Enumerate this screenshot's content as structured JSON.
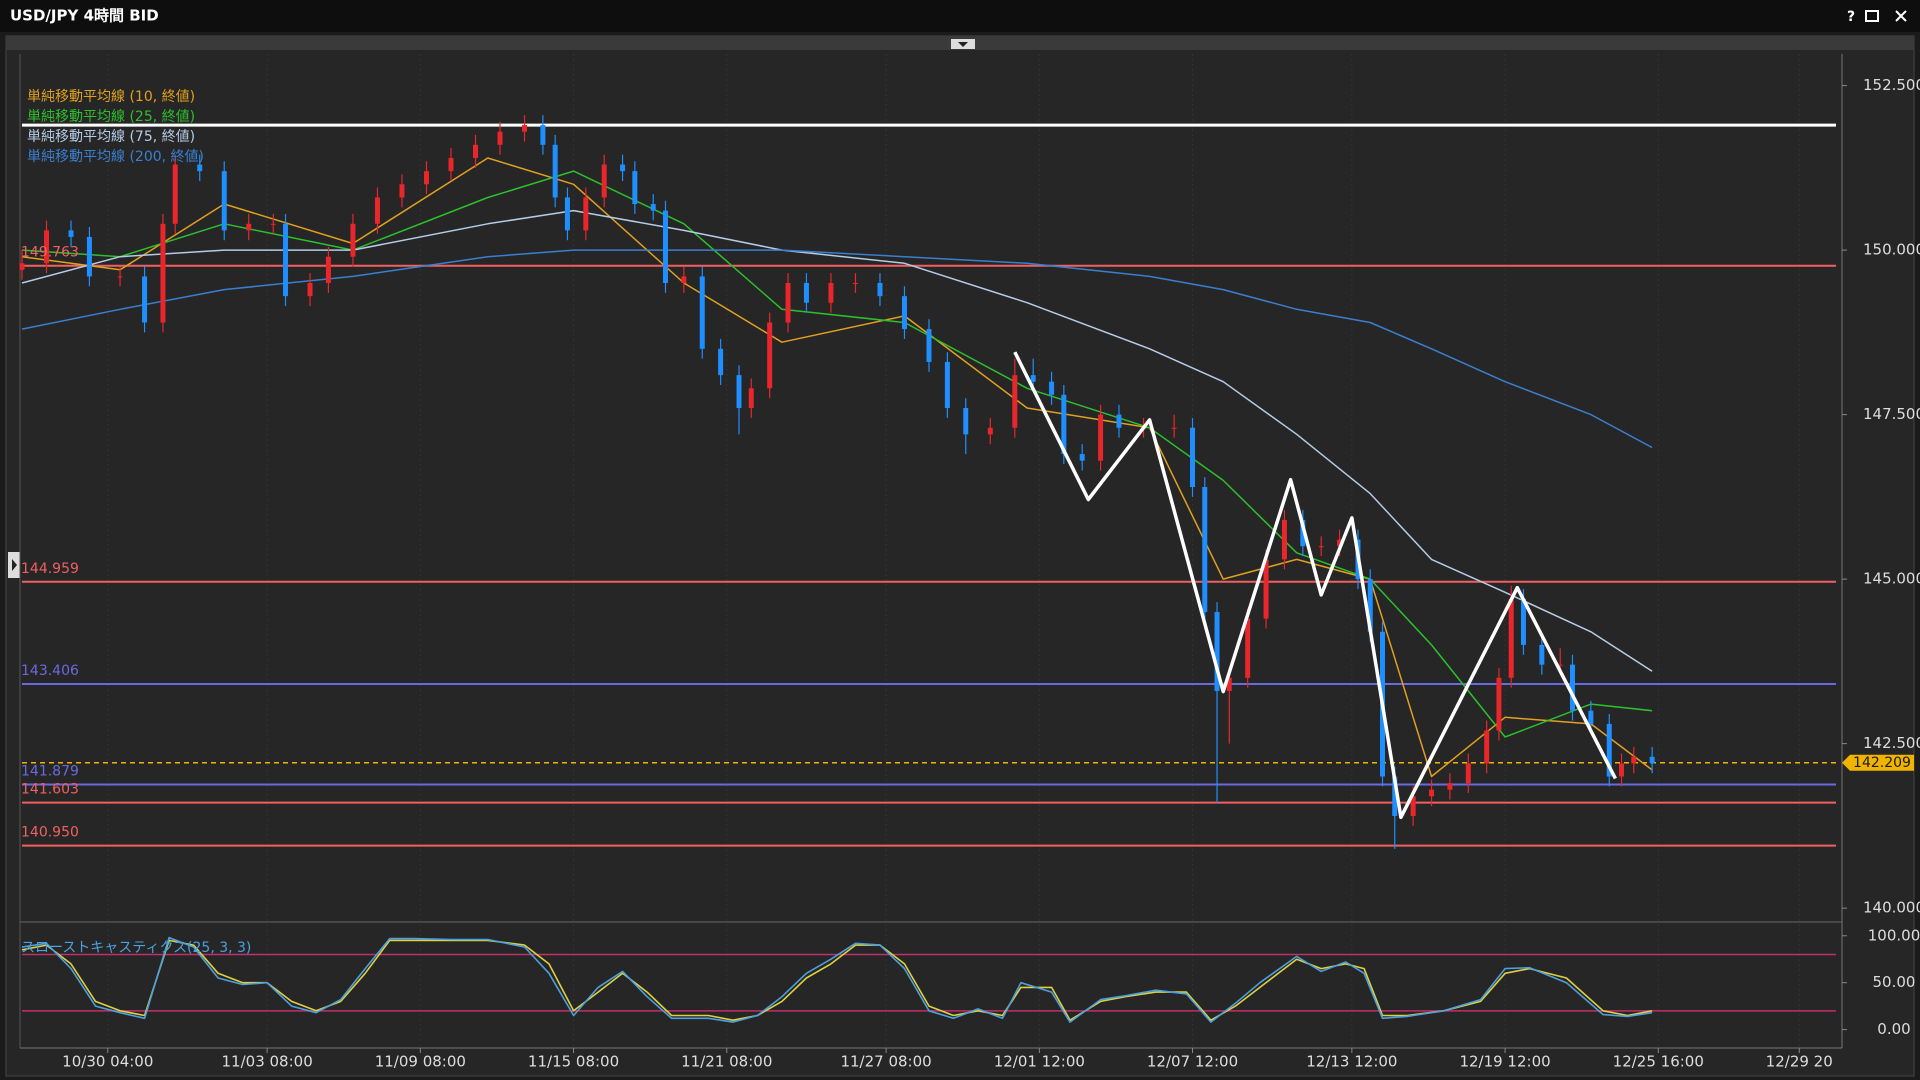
{
  "chart_data": {
    "type": "candlestick",
    "title": "USD/JPY 4時間 BID",
    "xlim": [
      0,
      296
    ],
    "xticks": [
      {
        "value": 14,
        "label": "10/30 04:00"
      },
      {
        "value": 40,
        "label": "11/03 08:00"
      },
      {
        "value": 65,
        "label": "11/09 08:00"
      },
      {
        "value": 90,
        "label": "11/15 08:00"
      },
      {
        "value": 115,
        "label": "11/21 08:00"
      },
      {
        "value": 141,
        "label": "11/27 08:00"
      },
      {
        "value": 166,
        "label": "12/01 12:00"
      },
      {
        "value": 191,
        "label": "12/07 12:00"
      },
      {
        "value": 217,
        "label": "12/13 12:00"
      },
      {
        "value": 242,
        "label": "12/19 12:00"
      },
      {
        "value": 267,
        "label": "12/25 16:00"
      },
      {
        "value": 290,
        "label": "12/29 20"
      }
    ],
    "grid": true,
    "ylim": [
      139.85,
      152.98
    ],
    "yticks": [
      {
        "value": 140,
        "label": "140.000"
      },
      {
        "value": 142.5,
        "label": "142.500"
      },
      {
        "value": 145,
        "label": "145.000"
      },
      {
        "value": 147.5,
        "label": "147.500"
      },
      {
        "value": 150,
        "label": "150.000"
      },
      {
        "value": 152.5,
        "label": "152.500"
      }
    ],
    "candles": {
      "up_color": "#e8262b",
      "down_color": "#1f8fff",
      "x": [
        0,
        4,
        8,
        11,
        16,
        20,
        23,
        25,
        29,
        33,
        37,
        41,
        43,
        47,
        50,
        54,
        58,
        62,
        66,
        70,
        74,
        78,
        82,
        85,
        87,
        89,
        92,
        95,
        98,
        100,
        103,
        105,
        108,
        111,
        114,
        117,
        119,
        122,
        125,
        128,
        132,
        136,
        140,
        144,
        148,
        151,
        154,
        158,
        162,
        165,
        168,
        170,
        173,
        176,
        179,
        183,
        188,
        191,
        193,
        195,
        197,
        200,
        203,
        206,
        209,
        212,
        215,
        218,
        220,
        222,
        224,
        227,
        230,
        233,
        236,
        239,
        241,
        243,
        245,
        248,
        251,
        253,
        256,
        259,
        261,
        263,
        266
      ],
      "ohlc": [
        [
          149.7,
          150.0,
          149.55,
          149.8
        ],
        [
          149.8,
          150.45,
          149.65,
          150.3
        ],
        [
          150.3,
          150.45,
          150.05,
          150.2
        ],
        [
          150.2,
          150.35,
          149.45,
          149.6
        ],
        [
          149.6,
          149.75,
          149.45,
          149.6
        ],
        [
          149.6,
          149.75,
          148.75,
          148.9
        ],
        [
          148.9,
          150.55,
          148.75,
          150.4
        ],
        [
          150.4,
          151.45,
          150.25,
          151.3
        ],
        [
          151.3,
          151.45,
          151.05,
          151.2
        ],
        [
          151.2,
          151.35,
          150.15,
          150.3
        ],
        [
          150.3,
          150.55,
          150.15,
          150.4
        ],
        [
          150.4,
          150.55,
          150.25,
          150.4
        ],
        [
          150.4,
          150.55,
          149.15,
          149.3
        ],
        [
          149.3,
          149.65,
          149.15,
          149.5
        ],
        [
          149.5,
          150.05,
          149.35,
          149.9
        ],
        [
          149.9,
          150.55,
          149.75,
          150.4
        ],
        [
          150.4,
          150.95,
          150.25,
          150.8
        ],
        [
          150.8,
          151.15,
          150.65,
          151.0
        ],
        [
          151.0,
          151.35,
          150.85,
          151.2
        ],
        [
          151.2,
          151.55,
          151.05,
          151.4
        ],
        [
          151.4,
          151.75,
          151.25,
          151.6
        ],
        [
          151.6,
          151.95,
          151.45,
          151.8
        ],
        [
          151.8,
          152.05,
          151.65,
          151.9
        ],
        [
          151.9,
          152.05,
          151.45,
          151.6
        ],
        [
          151.6,
          151.75,
          150.65,
          150.8
        ],
        [
          150.8,
          150.95,
          150.15,
          150.3
        ],
        [
          150.3,
          150.95,
          150.15,
          150.8
        ],
        [
          150.8,
          151.45,
          150.65,
          151.3
        ],
        [
          151.3,
          151.45,
          151.05,
          151.2
        ],
        [
          151.2,
          151.35,
          150.55,
          150.7
        ],
        [
          150.7,
          150.85,
          150.45,
          150.6
        ],
        [
          150.6,
          150.75,
          149.35,
          149.5
        ],
        [
          149.5,
          149.75,
          149.35,
          149.6
        ],
        [
          149.6,
          149.75,
          148.35,
          148.5
        ],
        [
          148.5,
          148.65,
          147.95,
          148.1
        ],
        [
          148.1,
          148.25,
          147.2,
          147.6
        ],
        [
          147.6,
          148.05,
          147.45,
          147.9
        ],
        [
          147.9,
          149.05,
          147.75,
          148.9
        ],
        [
          148.9,
          149.65,
          148.75,
          149.5
        ],
        [
          149.5,
          149.65,
          149.05,
          149.2
        ],
        [
          149.2,
          149.65,
          149.05,
          149.5
        ],
        [
          149.5,
          149.65,
          149.35,
          149.5
        ],
        [
          149.5,
          149.65,
          149.15,
          149.3
        ],
        [
          149.3,
          149.45,
          148.65,
          148.8
        ],
        [
          148.8,
          148.95,
          148.15,
          148.3
        ],
        [
          148.3,
          148.45,
          147.45,
          147.6
        ],
        [
          147.6,
          147.75,
          146.9,
          147.2
        ],
        [
          147.2,
          147.45,
          147.05,
          147.3
        ],
        [
          147.3,
          148.35,
          147.15,
          148.1
        ],
        [
          148.1,
          148.35,
          147.85,
          148.0
        ],
        [
          148.0,
          148.15,
          147.65,
          147.8
        ],
        [
          147.8,
          147.95,
          146.75,
          146.9
        ],
        [
          146.9,
          147.05,
          146.65,
          146.8
        ],
        [
          146.8,
          147.65,
          146.65,
          147.5
        ],
        [
          147.5,
          147.65,
          147.15,
          147.3
        ],
        [
          147.3,
          147.45,
          147.15,
          147.3
        ],
        [
          147.3,
          147.5,
          147.15,
          147.3
        ],
        [
          147.3,
          147.45,
          146.25,
          146.4
        ],
        [
          146.4,
          146.55,
          144.35,
          144.5
        ],
        [
          144.5,
          144.65,
          141.6,
          143.3
        ],
        [
          143.3,
          143.65,
          142.5,
          143.5
        ],
        [
          143.5,
          144.55,
          143.35,
          144.4
        ],
        [
          144.4,
          145.45,
          144.25,
          145.3
        ],
        [
          145.3,
          146.05,
          145.15,
          145.9
        ],
        [
          145.9,
          146.05,
          145.35,
          145.5
        ],
        [
          145.5,
          145.65,
          145.35,
          145.5
        ],
        [
          145.5,
          145.75,
          145.35,
          145.6
        ],
        [
          145.6,
          145.75,
          144.85,
          145.0
        ],
        [
          145.0,
          145.15,
          144.05,
          144.2
        ],
        [
          144.2,
          144.35,
          141.85,
          142.0
        ],
        [
          142.0,
          142.15,
          140.9,
          141.4
        ],
        [
          141.4,
          141.85,
          141.25,
          141.7
        ],
        [
          141.7,
          141.95,
          141.55,
          141.8
        ],
        [
          141.8,
          142.05,
          141.65,
          141.9
        ],
        [
          141.9,
          142.35,
          141.75,
          142.2
        ],
        [
          142.2,
          142.85,
          142.05,
          142.7
        ],
        [
          142.7,
          143.65,
          142.55,
          143.5
        ],
        [
          143.5,
          144.9,
          143.35,
          144.7
        ],
        [
          144.7,
          144.85,
          143.85,
          144.0
        ],
        [
          144.0,
          144.15,
          143.55,
          143.7
        ],
        [
          143.7,
          143.95,
          143.55,
          143.7
        ],
        [
          143.7,
          143.85,
          142.85,
          143.0
        ],
        [
          143.0,
          143.15,
          142.65,
          142.8
        ],
        [
          142.8,
          142.95,
          141.85,
          142.0
        ],
        [
          142.0,
          142.35,
          141.85,
          142.2
        ],
        [
          142.2,
          142.45,
          142.05,
          142.3
        ],
        [
          142.3,
          142.45,
          142.05,
          142.2
        ]
      ]
    },
    "series": [
      {
        "name": "単純移動平均線 (10, 終値)",
        "color": "#e0a020",
        "x": [
          0,
          16,
          33,
          54,
          76,
          90,
          108,
          124,
          144,
          164,
          184,
          196,
          208,
          220,
          230,
          242,
          256,
          266
        ],
        "values": [
          149.9,
          149.7,
          150.7,
          150.1,
          151.4,
          151.0,
          149.5,
          148.6,
          149.0,
          147.6,
          147.3,
          145.0,
          145.3,
          145.0,
          142.0,
          142.9,
          142.8,
          142.1
        ]
      },
      {
        "name": "単純移動平均線 (25, 終値)",
        "color": "#2cc02c",
        "x": [
          0,
          16,
          33,
          54,
          76,
          90,
          108,
          124,
          144,
          164,
          184,
          196,
          208,
          220,
          230,
          242,
          256,
          266
        ],
        "values": [
          150.0,
          149.9,
          150.4,
          150.0,
          150.8,
          151.2,
          150.4,
          149.1,
          148.9,
          147.9,
          147.3,
          146.5,
          145.4,
          145.0,
          144.0,
          142.6,
          143.1,
          143.0
        ]
      },
      {
        "name": "単純移動平均線 (75, 終値)",
        "color": "#b4cce6",
        "x": [
          0,
          16,
          33,
          54,
          76,
          90,
          108,
          124,
          144,
          164,
          184,
          196,
          208,
          220,
          230,
          242,
          256,
          266
        ],
        "values": [
          149.5,
          149.9,
          150.0,
          150.0,
          150.4,
          150.6,
          150.3,
          150.0,
          149.8,
          149.2,
          148.5,
          148.0,
          147.2,
          146.3,
          145.3,
          144.8,
          144.2,
          143.6
        ]
      },
      {
        "name": "単純移動平均線 (200, 終値)",
        "color": "#3a7fd0",
        "x": [
          0,
          16,
          33,
          54,
          76,
          90,
          108,
          124,
          144,
          164,
          184,
          196,
          208,
          220,
          230,
          242,
          256,
          266
        ],
        "values": [
          148.8,
          149.1,
          149.4,
          149.6,
          149.9,
          150.0,
          150.0,
          150.0,
          149.9,
          149.8,
          149.6,
          149.4,
          149.1,
          148.9,
          148.5,
          148.0,
          147.5,
          147.0
        ]
      }
    ],
    "levels": [
      {
        "value": 151.9,
        "color": "#ffffff"
      },
      {
        "value": 149.763,
        "label": "149.763",
        "color": "#f06060"
      },
      {
        "value": 144.959,
        "label": "144.959",
        "color": "#f06060"
      },
      {
        "value": 143.406,
        "label": "143.406",
        "color": "#6a6ae0"
      },
      {
        "value": 141.879,
        "label": "141.879",
        "color": "#6a6ae0"
      },
      {
        "value": 141.603,
        "label": "141.603",
        "color": "#f06060"
      },
      {
        "value": 140.95,
        "label": "140.950",
        "color": "#f06060"
      }
    ],
    "zigzag": {
      "color": "#ffffff",
      "x": [
        162,
        174,
        184,
        196,
        207,
        212,
        217,
        225,
        244,
        260
      ],
      "values": [
        148.45,
        146.21,
        147.42,
        143.29,
        146.51,
        144.76,
        145.93,
        141.38,
        144.87,
        141.97
      ]
    },
    "last_price": {
      "value": 142.209,
      "color": "#f0b400"
    },
    "oscillator": {
      "type": "line",
      "name": "スローストキャスティクス(25, 3, 3)",
      "ylim": [
        -14.3,
        110.4
      ],
      "yticks": [
        {
          "value": 0,
          "label": "0.00"
        },
        {
          "value": 50,
          "label": "50.00"
        },
        {
          "value": 100,
          "label": "100.00"
        }
      ],
      "levels": [
        {
          "value": 80,
          "color": "#c0306a"
        },
        {
          "value": 20,
          "color": "#c0306a"
        }
      ],
      "series": [
        {
          "color": "#e0d040",
          "x": [
            0,
            4,
            8,
            12,
            16,
            20,
            24,
            28,
            32,
            36,
            40,
            44,
            48,
            52,
            56,
            60,
            64,
            70,
            76,
            82,
            86,
            90,
            94,
            98,
            102,
            106,
            112,
            116,
            120,
            124,
            128,
            132,
            136,
            140,
            144,
            148,
            152,
            156,
            160,
            163,
            168,
            171,
            176,
            180,
            185,
            190,
            194,
            198,
            202,
            208,
            212,
            216,
            219,
            222,
            226,
            232,
            238,
            242,
            246,
            252,
            258,
            262,
            266
          ],
          "values": [
            85,
            90,
            70,
            30,
            20,
            15,
            95,
            90,
            60,
            50,
            50,
            30,
            20,
            30,
            60,
            95,
            95,
            95,
            95,
            90,
            70,
            20,
            40,
            60,
            40,
            15,
            15,
            10,
            15,
            30,
            55,
            70,
            90,
            90,
            70,
            25,
            15,
            20,
            15,
            45,
            45,
            10,
            30,
            35,
            40,
            40,
            10,
            25,
            45,
            75,
            65,
            70,
            65,
            15,
            15,
            20,
            30,
            60,
            65,
            55,
            20,
            15,
            20
          ]
        },
        {
          "color": "#4aa0e0",
          "x": [
            0,
            4,
            8,
            12,
            16,
            20,
            24,
            28,
            32,
            36,
            40,
            44,
            48,
            52,
            56,
            60,
            64,
            70,
            76,
            82,
            86,
            90,
            94,
            98,
            102,
            106,
            112,
            116,
            120,
            124,
            128,
            132,
            136,
            140,
            144,
            148,
            152,
            156,
            160,
            163,
            168,
            171,
            176,
            180,
            185,
            190,
            194,
            198,
            202,
            208,
            212,
            216,
            219,
            222,
            226,
            232,
            238,
            242,
            246,
            252,
            258,
            262,
            266
          ],
          "values": [
            88,
            92,
            65,
            25,
            18,
            12,
            98,
            88,
            55,
            48,
            50,
            25,
            18,
            32,
            65,
            97,
            97,
            96,
            96,
            88,
            60,
            15,
            45,
            62,
            35,
            12,
            12,
            8,
            15,
            35,
            60,
            75,
            92,
            90,
            65,
            20,
            12,
            22,
            12,
            50,
            40,
            8,
            32,
            36,
            42,
            38,
            8,
            28,
            50,
            78,
            62,
            72,
            60,
            12,
            14,
            20,
            32,
            65,
            66,
            50,
            16,
            14,
            18
          ]
        }
      ]
    }
  }
}
